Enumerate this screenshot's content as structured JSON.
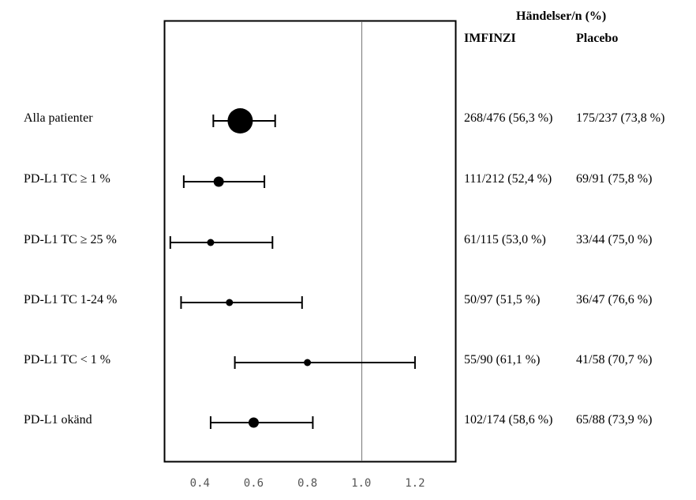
{
  "chart_data": {
    "type": "forest",
    "header": {
      "title": "Händelser/n (%)",
      "col1": "IMFINZI",
      "col2": "Placebo"
    },
    "xaxis": {
      "range": [
        0.27,
        1.35
      ],
      "ticks": [
        "0.4",
        "0.6",
        "0.8",
        "1.0",
        "1.2"
      ],
      "tick_values": [
        0.4,
        0.6,
        0.8,
        1.0,
        1.2
      ],
      "reference_line": 1.0
    },
    "rows": [
      {
        "label": "Alla patienter",
        "estimate": 0.55,
        "lower": 0.45,
        "upper": 0.68,
        "imfinzi": "268/476 (56,3 %)",
        "placebo": "175/237 (73,8 %)",
        "marker": "large"
      },
      {
        "label": "PD-L1 TC  ≥ 1 %",
        "estimate": 0.47,
        "lower": 0.34,
        "upper": 0.64,
        "imfinzi": "111/212 (52,4 %)",
        "placebo": "69/91 (75,8 %)",
        "marker": "medium"
      },
      {
        "label": "PD-L1 TC ≥ 25 %",
        "estimate": 0.44,
        "lower": 0.29,
        "upper": 0.67,
        "imfinzi": "61/115 (53,0 %)",
        "placebo": "33/44 (75,0 %)",
        "marker": "small"
      },
      {
        "label": "PD-L1 TC 1-24 %",
        "estimate": 0.51,
        "lower": 0.33,
        "upper": 0.78,
        "imfinzi": "50/97 (51,5 %)",
        "placebo": "36/47 (76,6 %)",
        "marker": "small"
      },
      {
        "label": "PD-L1 TC < 1 %",
        "estimate": 0.8,
        "lower": 0.53,
        "upper": 1.2,
        "imfinzi": "55/90 (61,1 %)",
        "placebo": "41/58 (70,7 %)",
        "marker": "small"
      },
      {
        "label": "PD-L1 okänd",
        "estimate": 0.6,
        "lower": 0.44,
        "upper": 0.82,
        "imfinzi": "102/174 (58,6 %)",
        "placebo": "65/88 (73,9 %)",
        "marker": "medium"
      }
    ]
  }
}
